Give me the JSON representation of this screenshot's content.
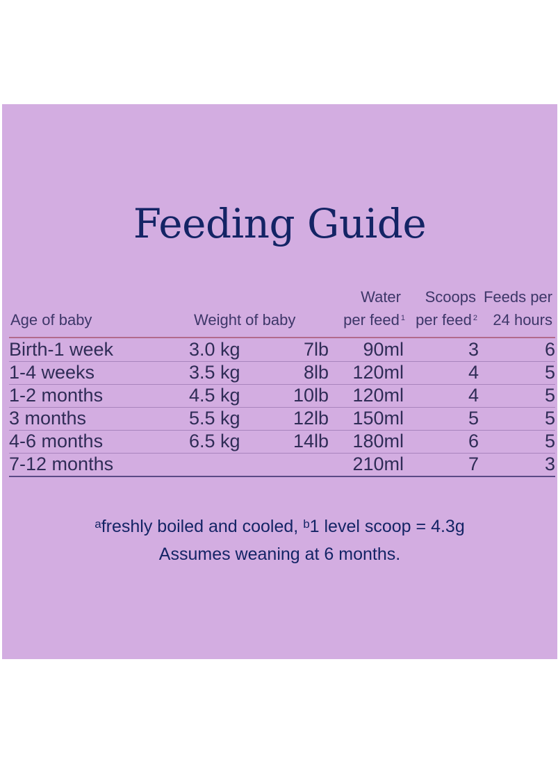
{
  "title": "Feeding Guide",
  "columns": {
    "age": "Age of baby",
    "weight": "Weight of baby",
    "water_line1": "Water",
    "water_line2": "per feed",
    "water_sup": "1",
    "scoops_line1": "Scoops",
    "scoops_line2": "per feed",
    "scoops_sup": "2",
    "feeds_line1": "Feeds per",
    "feeds_line2": "24 hours"
  },
  "rows": [
    {
      "age": "Birth-1 week",
      "kg": "3.0 kg",
      "lb": "7lb",
      "water": "90ml",
      "scoops": "3",
      "feeds": "6"
    },
    {
      "age": "1-4 weeks",
      "kg": "3.5 kg",
      "lb": "8lb",
      "water": "120ml",
      "scoops": "4",
      "feeds": "5"
    },
    {
      "age": "1-2 months",
      "kg": "4.5 kg",
      "lb": "10lb",
      "water": "120ml",
      "scoops": "4",
      "feeds": "5"
    },
    {
      "age": "3 months",
      "kg": "5.5 kg",
      "lb": "12lb",
      "water": "150ml",
      "scoops": "5",
      "feeds": "5"
    },
    {
      "age": "4-6 months",
      "kg": "6.5 kg",
      "lb": "14lb",
      "water": "180ml",
      "scoops": "6",
      "feeds": "5"
    },
    {
      "age": "7-12 months",
      "kg": "",
      "lb": "",
      "water": "210ml",
      "scoops": "7",
      "feeds": "3"
    }
  ],
  "footnote": {
    "sup_a": "a",
    "text_a": "freshly boiled and cooled, ",
    "sup_b": "b",
    "text_b": "1 level scoop = 4.3g",
    "line2": "Assumes weaning at 6 months."
  },
  "colors": {
    "panel": "#d3ade1",
    "title": "#142465",
    "header_rule": "#b26a8c"
  }
}
